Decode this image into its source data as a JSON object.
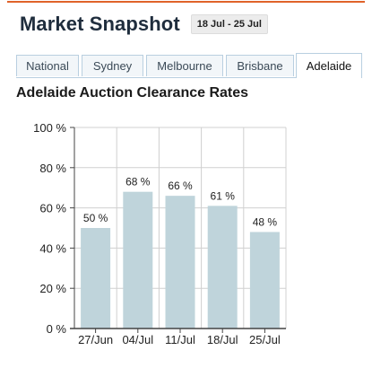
{
  "header": {
    "title": "Market Snapshot",
    "date_range": "18 Jul - 25 Jul"
  },
  "tabs": [
    {
      "label": "National",
      "active": false
    },
    {
      "label": "Sydney",
      "active": false
    },
    {
      "label": "Melbourne",
      "active": false
    },
    {
      "label": "Brisbane",
      "active": false
    },
    {
      "label": "Adelaide",
      "active": true
    }
  ],
  "colors": {
    "accent_rule": "#e0632a",
    "bar_fill": "#bfd4db",
    "grid": "#d0d0d0",
    "axis": "#444444"
  },
  "chart_data": {
    "type": "bar",
    "title": "Adelaide Auction Clearance Rates",
    "categories": [
      "27/Jun",
      "04/Jul",
      "11/Jul",
      "18/Jul",
      "25/Jul"
    ],
    "values": [
      50,
      68,
      66,
      61,
      48
    ],
    "data_labels": [
      "50 %",
      "68 %",
      "66 %",
      "61 %",
      "48 %"
    ],
    "ylim": [
      0,
      100
    ],
    "yticks": [
      0,
      20,
      40,
      60,
      80,
      100
    ],
    "ytick_labels": [
      "0 %",
      "20 %",
      "40 %",
      "60 %",
      "80 %",
      "100 %"
    ],
    "xlabel": "",
    "ylabel": "",
    "grid": true
  }
}
